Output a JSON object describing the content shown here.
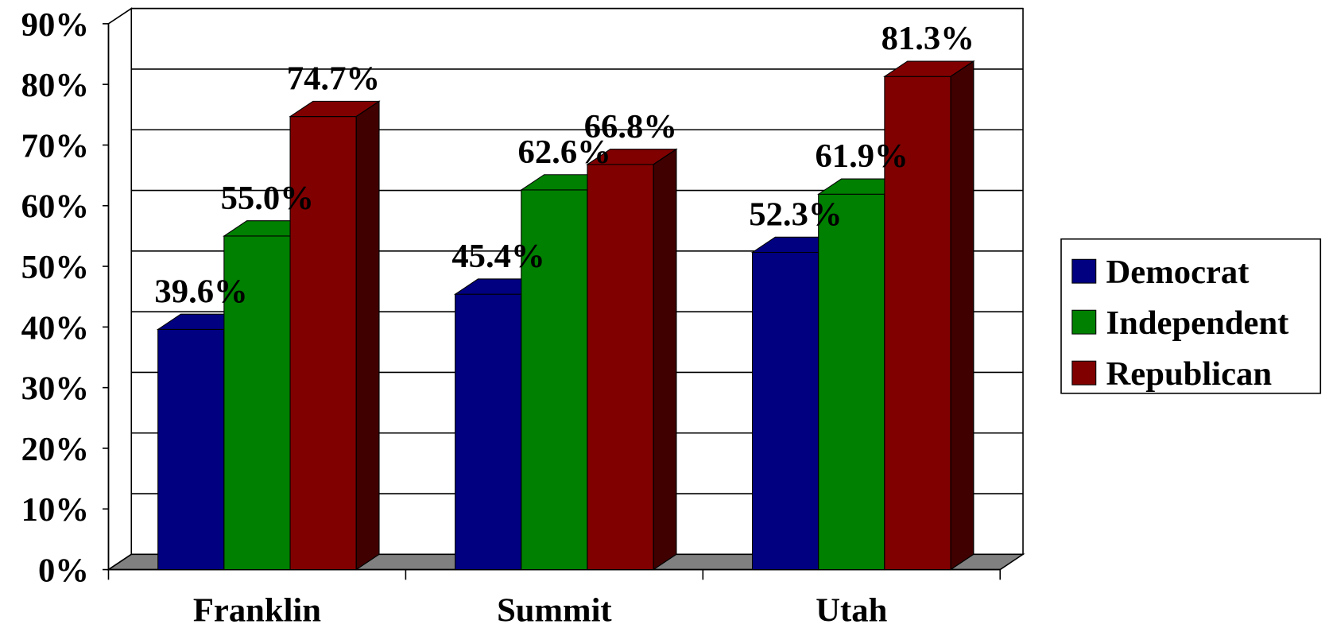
{
  "chart_data": {
    "type": "bar3d",
    "categories": [
      "Franklin",
      "Summit",
      "Utah"
    ],
    "series": [
      {
        "name": "Democrat",
        "color": "#000080",
        "values": [
          39.6,
          45.4,
          52.3
        ],
        "value_labels": [
          "39.6%",
          "45.4%",
          "52.3%"
        ]
      },
      {
        "name": "Independent",
        "color": "#008000",
        "values": [
          55.0,
          62.6,
          61.9
        ],
        "value_labels": [
          "55.0%",
          "62.6%",
          "61.9%"
        ]
      },
      {
        "name": "Republican",
        "color": "#800000",
        "values": [
          74.7,
          66.8,
          81.3
        ],
        "value_labels": [
          "74.7%",
          "66.8%",
          "81.3%"
        ]
      }
    ],
    "ylim": [
      0,
      90
    ],
    "yticks": [
      {
        "value": 0,
        "label": "0%"
      },
      {
        "value": 10,
        "label": "10%"
      },
      {
        "value": 20,
        "label": "20%"
      },
      {
        "value": 30,
        "label": "30%"
      },
      {
        "value": 40,
        "label": "40%"
      },
      {
        "value": 50,
        "label": "50%"
      },
      {
        "value": 60,
        "label": "60%"
      },
      {
        "value": 70,
        "label": "70%"
      },
      {
        "value": 80,
        "label": "80%"
      },
      {
        "value": 90,
        "label": "90%"
      }
    ],
    "grid": true,
    "legend": "right"
  }
}
